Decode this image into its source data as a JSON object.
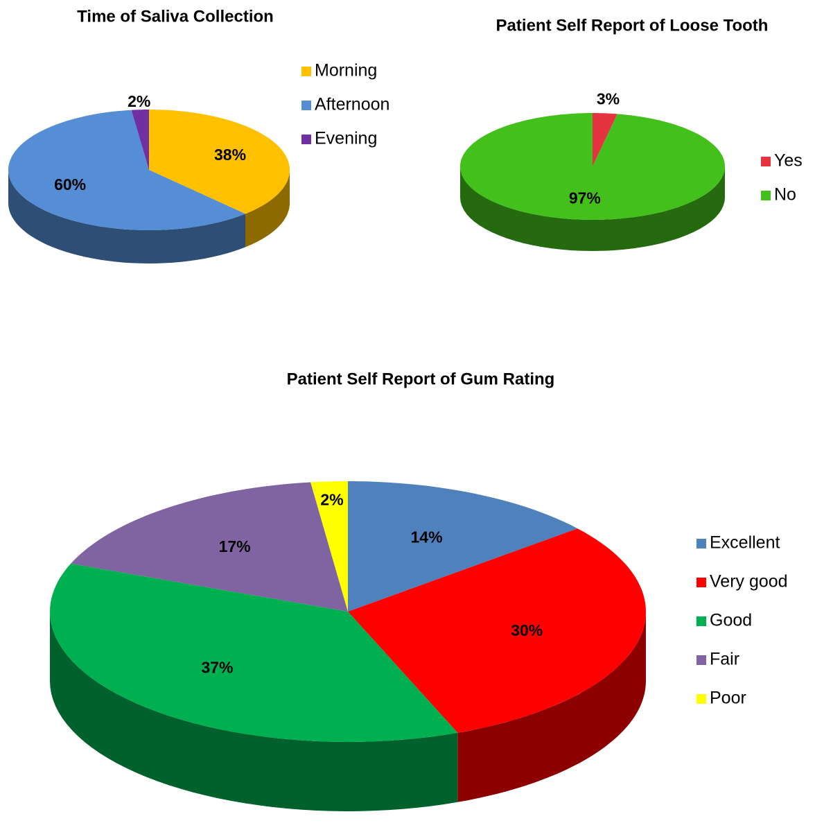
{
  "chart_data": [
    {
      "type": "pie",
      "title": "Time of Saliva Collection",
      "categories": [
        "Morning",
        "Afternoon",
        "Evening"
      ],
      "values": [
        38,
        60,
        2
      ],
      "value_labels": [
        "38%",
        "60%",
        "2%"
      ],
      "colors": [
        "#ffc000",
        "#558ed5",
        "#7030a0"
      ],
      "legend": "right"
    },
    {
      "type": "pie",
      "title": "Patient Self Report of Loose Tooth",
      "categories": [
        "Yes",
        "No"
      ],
      "values": [
        3,
        97
      ],
      "value_labels": [
        "3%",
        "97%"
      ],
      "colors": [
        "#e3343f",
        "#44c01c"
      ],
      "legend": "right"
    },
    {
      "type": "pie",
      "title": "Patient Self Report of Gum Rating",
      "categories": [
        "Excellent",
        "Very good",
        "Good",
        "Fair",
        "Poor"
      ],
      "values": [
        14,
        30,
        37,
        17,
        2
      ],
      "value_labels": [
        "14%",
        "30%",
        "37%",
        "17%",
        "2%"
      ],
      "colors": [
        "#4f81bd",
        "#ff0000",
        "#00b050",
        "#8064a2",
        "#ffff00"
      ],
      "legend": "right"
    }
  ]
}
